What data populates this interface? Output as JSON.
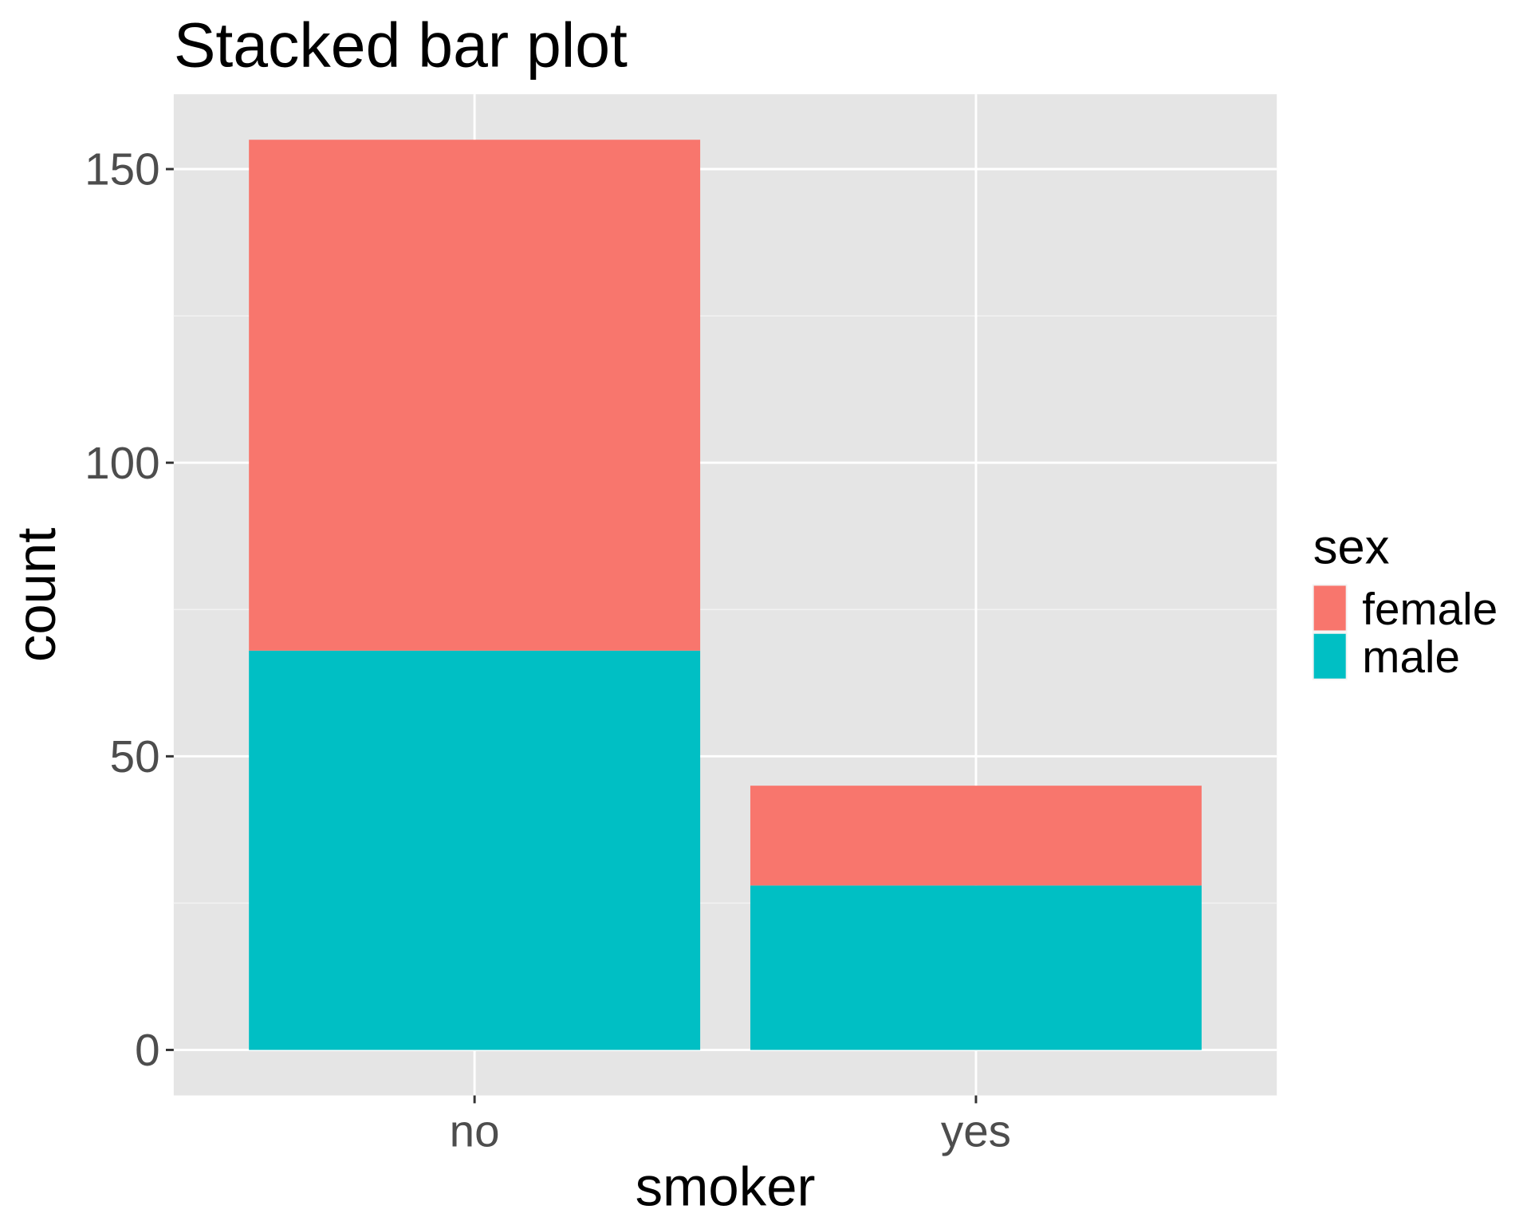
{
  "chart_data": {
    "type": "bar",
    "stacked": true,
    "title": "Stacked bar plot",
    "xlabel": "smoker",
    "ylabel": "count",
    "categories": [
      "no",
      "yes"
    ],
    "series": [
      {
        "name": "female",
        "values": [
          87,
          17
        ],
        "color": "#F8766D"
      },
      {
        "name": "male",
        "values": [
          68,
          28
        ],
        "color": "#00BFC4"
      }
    ],
    "ylim": [
      -7.75,
      162.75
    ],
    "yticks": [
      0,
      50,
      100,
      150
    ],
    "ytick_labels": [
      "0",
      "50",
      "100",
      "150"
    ],
    "grid": true,
    "legend": {
      "title": "sex",
      "placement": "right",
      "entries": [
        "female",
        "male"
      ]
    },
    "panel_background": "#E5E5E5"
  }
}
